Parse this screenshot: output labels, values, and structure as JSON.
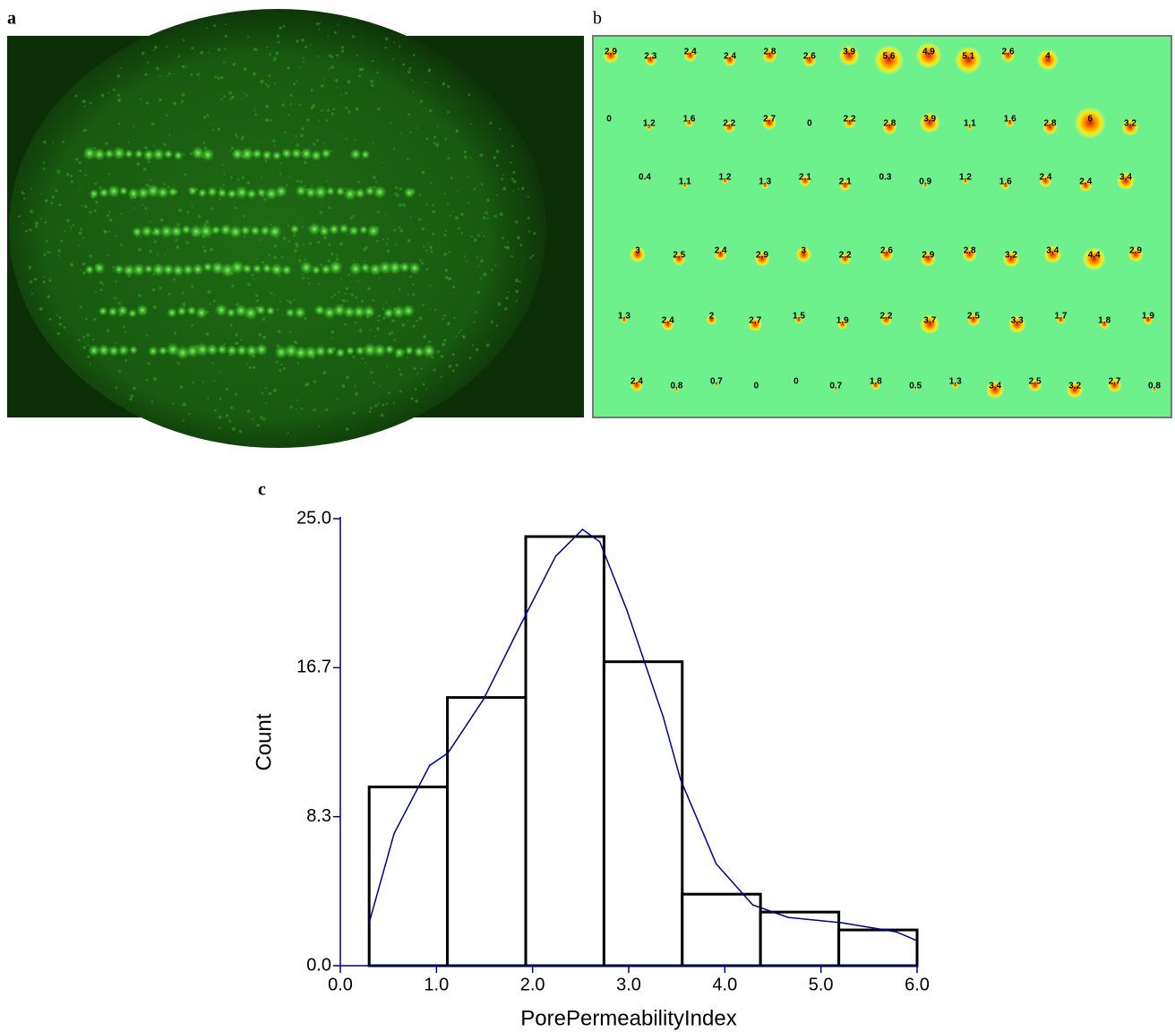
{
  "chart_data": [
    {
      "type": "image",
      "label": "a"
    },
    {
      "type": "spot_map",
      "label": "b",
      "rows": [
        [
          2.9,
          2.3,
          2.4,
          2.4,
          2.8,
          2.6,
          3.9,
          5.6,
          4.9,
          5.1,
          2.6,
          4
        ],
        [
          0,
          1.2,
          1.6,
          2.2,
          2.7,
          0,
          2.2,
          2.8,
          3.9,
          1.1,
          1.6,
          2.8,
          6,
          3.2
        ],
        [
          0.4,
          1.1,
          1.2,
          1.3,
          2.1,
          2.1,
          0.3,
          0.9,
          1.2,
          1.6,
          2.4,
          2.4,
          3.4
        ],
        [
          3,
          2.5,
          2.4,
          2.9,
          3,
          2.2,
          2.6,
          2.9,
          2.8,
          3.2,
          3.4,
          4.4,
          2.9
        ],
        [
          1.3,
          2.4,
          2,
          2.7,
          1.5,
          1.9,
          2.2,
          3.7,
          2.5,
          3.3,
          1.7,
          1.8,
          1.9
        ],
        [
          2.4,
          0.8,
          0.7,
          0,
          0,
          0.7,
          1.8,
          0.5,
          1.3,
          3.4,
          2.5,
          3.2,
          2.7,
          0.8
        ]
      ],
      "background": "#6ef08c"
    },
    {
      "type": "histogram",
      "label": "c",
      "bins": [
        0.3,
        1.114,
        1.929,
        2.743,
        3.557,
        4.371,
        5.186,
        6.0
      ],
      "values": [
        10,
        15,
        24,
        17,
        4,
        3,
        2
      ],
      "color": "#000000",
      "curve": {
        "color": "#00008b",
        "x": [
          0.3,
          0.56,
          0.93,
          1.12,
          1.49,
          1.86,
          2.24,
          2.52,
          2.7,
          2.98,
          3.36,
          3.54,
          3.91,
          4.29,
          4.66,
          5.22,
          5.78,
          6.0
        ],
        "values": [
          2.4,
          7.4,
          11.2,
          11.9,
          14.9,
          18.9,
          22.9,
          24.4,
          23.7,
          19.9,
          13.9,
          10.4,
          5.7,
          3.4,
          2.7,
          2.4,
          1.9,
          1.4
        ]
      },
      "xlim": [
        0,
        6
      ],
      "ylim": [
        0,
        25
      ],
      "xticks": [
        {
          "value": 0,
          "label": "0.0"
        },
        {
          "value": 1,
          "label": "1.0"
        },
        {
          "value": 2,
          "label": "2.0"
        },
        {
          "value": 3,
          "label": "3.0"
        },
        {
          "value": 4,
          "label": "4.0"
        },
        {
          "value": 5,
          "label": "5.0"
        },
        {
          "value": 6,
          "label": "6.0"
        }
      ],
      "yticks": [
        {
          "value": 0,
          "label": "0.0"
        },
        {
          "value": 8.333,
          "label": "8.3"
        },
        {
          "value": 16.667,
          "label": "16.7"
        },
        {
          "value": 25,
          "label": "25.0"
        }
      ],
      "xlabel": "PorePermeabilityIndex",
      "ylabel": "Count",
      "axis_color": "#00008b"
    }
  ]
}
